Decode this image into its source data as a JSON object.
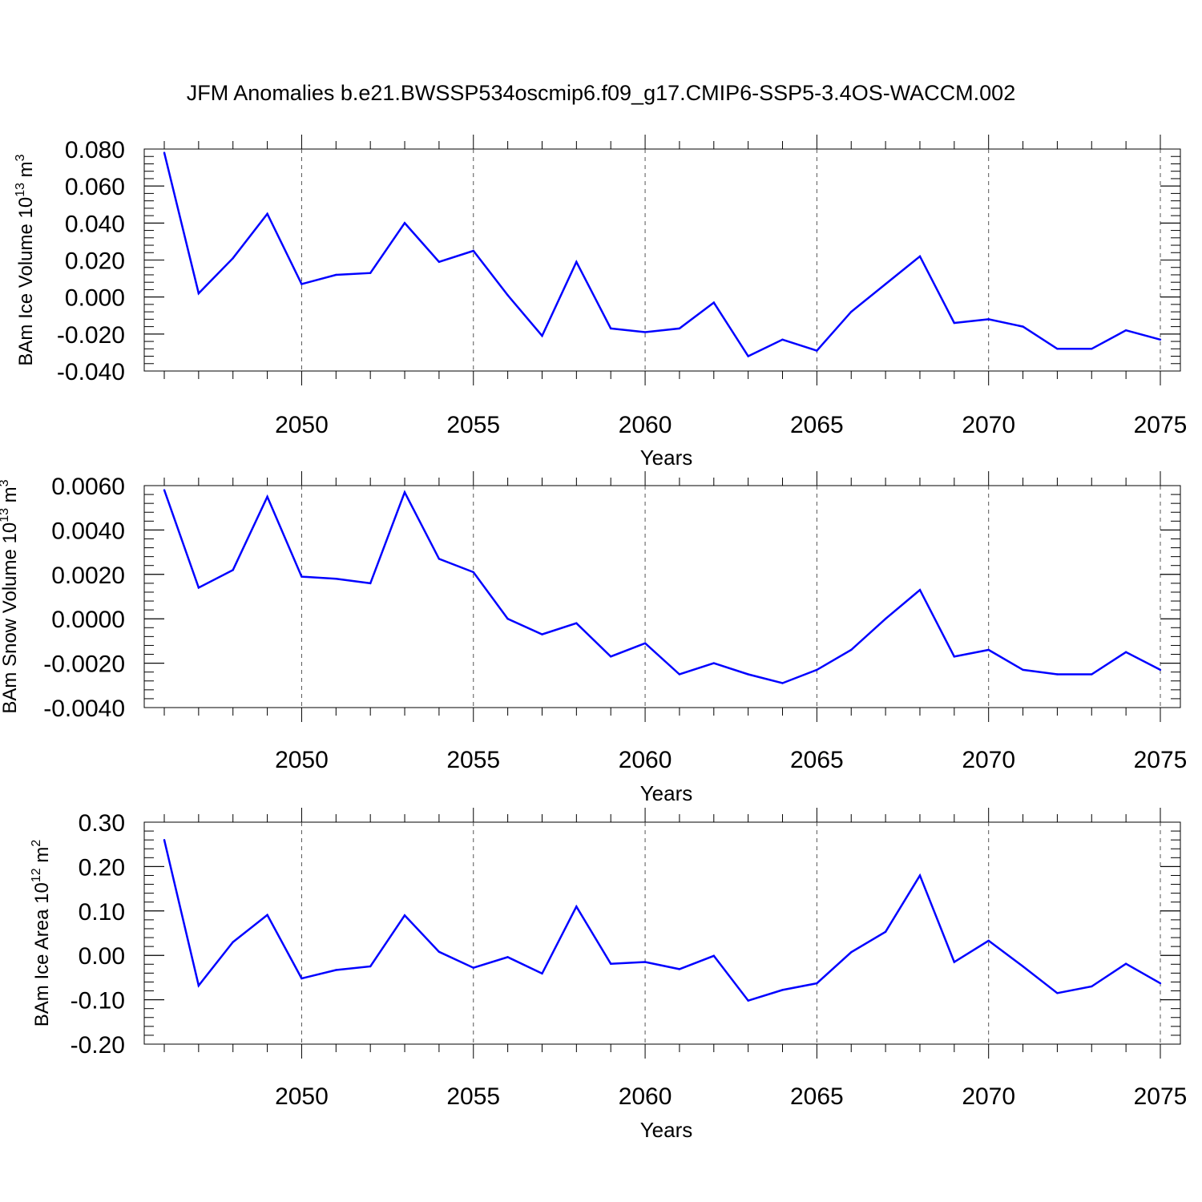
{
  "title": "JFM Anomalies b.e21.BWSSP534oscmip6.f09_g17.CMIP6-SSP5-3.4OS-WACCM.002",
  "colors": {
    "line": "#0000ff",
    "axis": "#000000",
    "grid": "#555555"
  },
  "chart_data": [
    {
      "type": "line",
      "ylabel": "BAm Ice Volume 10",
      "ylabel_sup": "13",
      "ylabel_unit": "m",
      "ylabel_unit_sup": "3",
      "xlabel": "Years",
      "xlim": [
        2045.4,
        2075.6
      ],
      "ylim": [
        -0.04,
        0.09
      ],
      "yticks": [
        0.08,
        0.06,
        0.04,
        0.02,
        0.0,
        -0.02,
        -0.04
      ],
      "ytick_labels": [
        "0.080",
        "0.060",
        "0.040",
        "0.020",
        "0.000",
        "-0.020",
        "-0.040"
      ],
      "xticks": [
        2050,
        2055,
        2060,
        2065,
        2070,
        2075
      ],
      "xtick_labels": [
        "2050",
        "2055",
        "2060",
        "2065",
        "2070",
        "2075"
      ],
      "grid": "vertical dashed",
      "x": [
        2046,
        2047,
        2048,
        2049,
        2050,
        2051,
        2052,
        2053,
        2054,
        2055,
        2056,
        2057,
        2058,
        2059,
        2060,
        2061,
        2062,
        2063,
        2064,
        2065,
        2066,
        2067,
        2068,
        2069,
        2070,
        2071,
        2072,
        2073,
        2074,
        2075
      ],
      "values": [
        0.078,
        0.002,
        0.021,
        0.045,
        0.007,
        0.012,
        0.013,
        0.04,
        0.019,
        0.025,
        0.001,
        -0.021,
        0.019,
        -0.017,
        -0.019,
        -0.017,
        -0.003,
        -0.032,
        -0.023,
        -0.029,
        -0.008,
        0.007,
        0.022,
        -0.014,
        -0.012,
        -0.016,
        -0.028,
        -0.028,
        -0.018,
        -0.023
      ]
    },
    {
      "type": "line",
      "ylabel": "BAm Snow Volume 10",
      "ylabel_sup": "13",
      "ylabel_unit": "m",
      "ylabel_unit_sup": "3",
      "xlabel": "Years",
      "xlim": [
        2045.4,
        2075.6
      ],
      "ylim": [
        -0.004,
        0.006
      ],
      "yticks": [
        0.006,
        0.004,
        0.002,
        0.0,
        -0.002,
        -0.004
      ],
      "ytick_labels": [
        "0.0060",
        "0.0040",
        "0.0020",
        "0.0000",
        "-0.0020",
        "-0.0040"
      ],
      "xticks": [
        2050,
        2055,
        2060,
        2065,
        2070,
        2075
      ],
      "xtick_labels": [
        "2050",
        "2055",
        "2060",
        "2065",
        "2070",
        "2075"
      ],
      "grid": "vertical dashed",
      "x": [
        2046,
        2047,
        2048,
        2049,
        2050,
        2051,
        2052,
        2053,
        2054,
        2055,
        2056,
        2057,
        2058,
        2059,
        2060,
        2061,
        2062,
        2063,
        2064,
        2065,
        2066,
        2067,
        2068,
        2069,
        2070,
        2071,
        2072,
        2073,
        2074,
        2075
      ],
      "values": [
        0.0058,
        0.0014,
        0.0022,
        0.0055,
        0.0019,
        0.0018,
        0.0016,
        0.0057,
        0.0027,
        0.0021,
        0.0,
        -0.0007,
        -0.0002,
        -0.0017,
        -0.0011,
        -0.0025,
        -0.002,
        -0.0025,
        -0.0029,
        -0.0023,
        -0.0014,
        0.0,
        0.0013,
        -0.0017,
        -0.0014,
        -0.0023,
        -0.0025,
        -0.0025,
        -0.0015,
        -0.0023
      ]
    },
    {
      "type": "line",
      "ylabel": "BAm Ice Area 10",
      "ylabel_sup": "12",
      "ylabel_unit": "m",
      "ylabel_unit_sup": "2",
      "xlabel": "Years",
      "xlim": [
        2045.4,
        2075.6
      ],
      "ylim": [
        -0.2,
        0.3
      ],
      "yticks": [
        0.3,
        0.2,
        0.1,
        0.0,
        -0.1,
        -0.2
      ],
      "ytick_labels": [
        "0.30",
        "0.20",
        "0.10",
        "0.00",
        "-0.10",
        "-0.20"
      ],
      "xticks": [
        2050,
        2055,
        2060,
        2065,
        2070,
        2075
      ],
      "xtick_labels": [
        "2050",
        "2055",
        "2060",
        "2065",
        "2070",
        "2075"
      ],
      "grid": "vertical dashed",
      "x": [
        2046,
        2047,
        2048,
        2049,
        2050,
        2051,
        2052,
        2053,
        2054,
        2055,
        2056,
        2057,
        2058,
        2059,
        2060,
        2061,
        2062,
        2063,
        2064,
        2065,
        2066,
        2067,
        2068,
        2069,
        2070,
        2071,
        2072,
        2073,
        2074,
        2075
      ],
      "values": [
        0.26,
        -0.068,
        0.03,
        0.091,
        -0.052,
        -0.033,
        -0.025,
        0.09,
        0.008,
        -0.028,
        -0.004,
        -0.041,
        0.11,
        -0.019,
        -0.015,
        -0.031,
        -0.001,
        -0.102,
        -0.078,
        -0.063,
        0.007,
        0.053,
        0.18,
        -0.015,
        0.033,
        -0.025,
        -0.085,
        -0.07,
        -0.019,
        -0.063
      ]
    }
  ]
}
